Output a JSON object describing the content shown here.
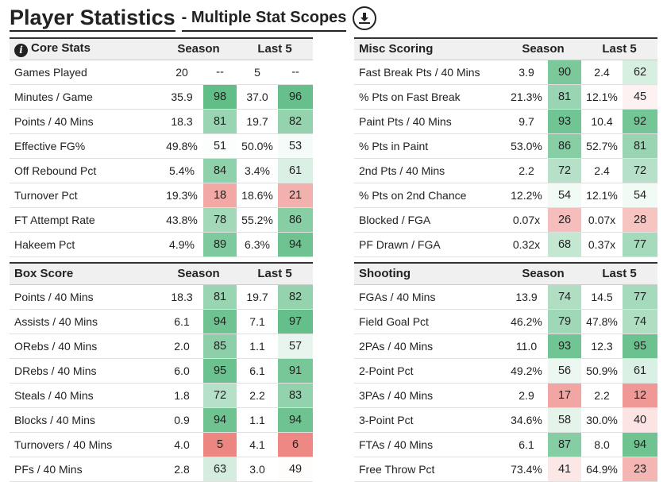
{
  "header": {
    "title": "Player Statistics",
    "subtitle": "- Multiple Stat Scopes",
    "download_icon": "download-icon"
  },
  "columns": {
    "season": "Season",
    "last5": "Last 5"
  },
  "panels": [
    {
      "id": "core-stats",
      "title": "Core Stats",
      "has_info": true,
      "rows": [
        {
          "label": "Games Played",
          "season": "20",
          "season_pct": "--",
          "last5": "5",
          "last5_pct": "--"
        },
        {
          "label": "Minutes / Game",
          "season": "35.9",
          "season_pct": "98",
          "last5": "37.0",
          "last5_pct": "96"
        },
        {
          "label": "Points / 40 Mins",
          "season": "18.3",
          "season_pct": "81",
          "last5": "19.7",
          "last5_pct": "82"
        },
        {
          "label": "Effective FG%",
          "season": "49.8%",
          "season_pct": "51",
          "last5": "50.0%",
          "last5_pct": "53"
        },
        {
          "label": "Off Rebound Pct",
          "season": "5.4%",
          "season_pct": "84",
          "last5": "3.4%",
          "last5_pct": "61"
        },
        {
          "label": "Turnover Pct",
          "season": "19.3%",
          "season_pct": "18",
          "last5": "18.6%",
          "last5_pct": "21"
        },
        {
          "label": "FT Attempt Rate",
          "season": "43.8%",
          "season_pct": "78",
          "last5": "55.2%",
          "last5_pct": "86"
        },
        {
          "label": "Hakeem Pct",
          "season": "4.9%",
          "season_pct": "89",
          "last5": "6.3%",
          "last5_pct": "94"
        }
      ]
    },
    {
      "id": "misc-scoring",
      "title": "Misc Scoring",
      "has_info": false,
      "rows": [
        {
          "label": "Fast Break Pts / 40 Mins",
          "season": "3.9",
          "season_pct": "90",
          "last5": "2.4",
          "last5_pct": "62"
        },
        {
          "label": "% Pts on Fast Break",
          "season": "21.3%",
          "season_pct": "81",
          "last5": "12.1%",
          "last5_pct": "45"
        },
        {
          "label": "Paint Pts / 40 Mins",
          "season": "9.7",
          "season_pct": "93",
          "last5": "10.4",
          "last5_pct": "92"
        },
        {
          "label": "% Pts in Paint",
          "season": "53.0%",
          "season_pct": "86",
          "last5": "52.7%",
          "last5_pct": "81"
        },
        {
          "label": "2nd Pts / 40 Mins",
          "season": "2.2",
          "season_pct": "72",
          "last5": "2.4",
          "last5_pct": "72"
        },
        {
          "label": "% Pts on 2nd Chance",
          "season": "12.2%",
          "season_pct": "54",
          "last5": "12.1%",
          "last5_pct": "54"
        },
        {
          "label": "Blocked / FGA",
          "season": "0.07x",
          "season_pct": "26",
          "last5": "0.07x",
          "last5_pct": "28"
        },
        {
          "label": "PF Drawn / FGA",
          "season": "0.32x",
          "season_pct": "68",
          "last5": "0.37x",
          "last5_pct": "77"
        }
      ]
    },
    {
      "id": "box-score",
      "title": "Box Score",
      "has_info": false,
      "rows": [
        {
          "label": "Points / 40 Mins",
          "season": "18.3",
          "season_pct": "81",
          "last5": "19.7",
          "last5_pct": "82"
        },
        {
          "label": "Assists / 40 Mins",
          "season": "6.1",
          "season_pct": "94",
          "last5": "7.1",
          "last5_pct": "97"
        },
        {
          "label": "ORebs / 40 Mins",
          "season": "2.0",
          "season_pct": "85",
          "last5": "1.1",
          "last5_pct": "57"
        },
        {
          "label": "DRebs / 40 Mins",
          "season": "6.0",
          "season_pct": "95",
          "last5": "6.1",
          "last5_pct": "91"
        },
        {
          "label": "Steals / 40 Mins",
          "season": "1.8",
          "season_pct": "72",
          "last5": "2.2",
          "last5_pct": "83"
        },
        {
          "label": "Blocks / 40 Mins",
          "season": "0.9",
          "season_pct": "94",
          "last5": "1.1",
          "last5_pct": "94"
        },
        {
          "label": "Turnovers / 40 Mins",
          "season": "4.0",
          "season_pct": "5",
          "last5": "4.1",
          "last5_pct": "6"
        },
        {
          "label": "PFs / 40 Mins",
          "season": "2.8",
          "season_pct": "63",
          "last5": "3.0",
          "last5_pct": "49"
        }
      ]
    },
    {
      "id": "shooting",
      "title": "Shooting",
      "has_info": false,
      "rows": [
        {
          "label": "FGAs / 40 Mins",
          "season": "13.9",
          "season_pct": "74",
          "last5": "14.5",
          "last5_pct": "77"
        },
        {
          "label": "Field Goal Pct",
          "season": "46.2%",
          "season_pct": "79",
          "last5": "47.8%",
          "last5_pct": "74"
        },
        {
          "label": "2PAs / 40 Mins",
          "season": "11.0",
          "season_pct": "93",
          "last5": "12.3",
          "last5_pct": "95"
        },
        {
          "label": "2-Point Pct",
          "season": "49.2%",
          "season_pct": "56",
          "last5": "50.9%",
          "last5_pct": "61"
        },
        {
          "label": "3PAs / 40 Mins",
          "season": "2.9",
          "season_pct": "17",
          "last5": "2.2",
          "last5_pct": "12"
        },
        {
          "label": "3-Point Pct",
          "season": "34.6%",
          "season_pct": "58",
          "last5": "30.0%",
          "last5_pct": "40"
        },
        {
          "label": "FTAs / 40 Mins",
          "season": "6.1",
          "season_pct": "87",
          "last5": "8.0",
          "last5_pct": "94"
        },
        {
          "label": "Free Throw Pct",
          "season": "73.4%",
          "season_pct": "41",
          "last5": "64.9%",
          "last5_pct": "23"
        }
      ]
    }
  ]
}
